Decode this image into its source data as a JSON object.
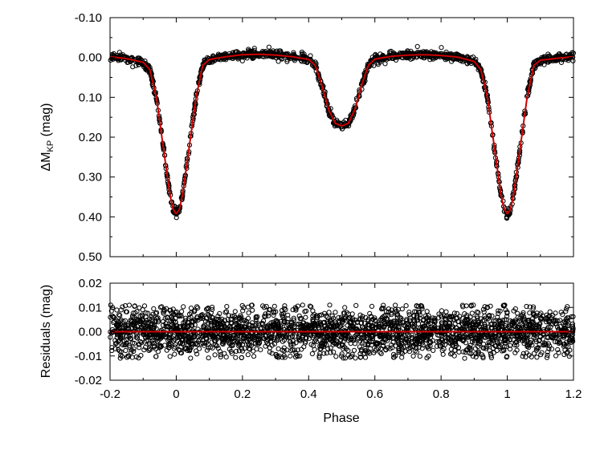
{
  "chart_data": [
    {
      "type": "scatter",
      "panel": "light-curve",
      "ylabel": {
        "main": "ΔM",
        "sub": "KP",
        "unit": " (mag)"
      },
      "xlim": [
        -0.2,
        1.2
      ],
      "ylim": [
        -0.1,
        0.5
      ],
      "y_inverted": true,
      "y_ticks": [
        -0.1,
        0.0,
        0.1,
        0.2,
        0.3,
        0.4,
        0.5
      ],
      "y_tick_labels": [
        "-0.10",
        "0.00",
        "0.10",
        "0.20",
        "0.30",
        "0.40",
        "0.50"
      ],
      "x_tick_count": 8,
      "grid": false,
      "series": [
        {
          "kind": "observed",
          "marker": "open-circle",
          "color": "#000000",
          "x": [
            -0.2,
            -0.15,
            -0.1,
            -0.08,
            -0.06,
            -0.04,
            -0.02,
            -0.01,
            0.0,
            0.01,
            0.02,
            0.04,
            0.06,
            0.08,
            0.1,
            0.15,
            0.2,
            0.25,
            0.3,
            0.35,
            0.4,
            0.42,
            0.44,
            0.46,
            0.48,
            0.5,
            0.52,
            0.54,
            0.56,
            0.58,
            0.6,
            0.65,
            0.7,
            0.75,
            0.8,
            0.85,
            0.9,
            0.92,
            0.94,
            0.96,
            0.98,
            0.99,
            1.0,
            1.01,
            1.02,
            1.04,
            1.06,
            1.08,
            1.1,
            1.15,
            1.2
          ],
          "y": [
            -0.002,
            0.003,
            0.012,
            0.03,
            0.1,
            0.22,
            0.34,
            0.38,
            0.393,
            0.38,
            0.34,
            0.22,
            0.1,
            0.02,
            0.005,
            -0.002,
            -0.007,
            -0.008,
            -0.006,
            -0.002,
            0.005,
            0.02,
            0.07,
            0.13,
            0.165,
            0.172,
            0.165,
            0.13,
            0.07,
            0.02,
            0.004,
            -0.003,
            -0.006,
            -0.007,
            -0.005,
            -0.001,
            0.01,
            0.03,
            0.1,
            0.22,
            0.34,
            0.38,
            0.393,
            0.38,
            0.34,
            0.22,
            0.1,
            0.02,
            0.007,
            0.002,
            -0.002
          ],
          "scatter_mag": 0.005
        },
        {
          "kind": "model",
          "line": "solid",
          "color": "#cc0000",
          "x": [
            -0.2,
            -0.15,
            -0.1,
            -0.08,
            -0.06,
            -0.04,
            -0.02,
            -0.01,
            0.0,
            0.01,
            0.02,
            0.04,
            0.06,
            0.08,
            0.1,
            0.15,
            0.2,
            0.25,
            0.3,
            0.35,
            0.4,
            0.42,
            0.44,
            0.46,
            0.48,
            0.5,
            0.52,
            0.54,
            0.56,
            0.58,
            0.6,
            0.65,
            0.7,
            0.75,
            0.8,
            0.85,
            0.9,
            0.92,
            0.94,
            0.96,
            0.98,
            0.99,
            1.0,
            1.01,
            1.02,
            1.04,
            1.06,
            1.08,
            1.1,
            1.15,
            1.2
          ],
          "y": [
            -0.002,
            0.003,
            0.012,
            0.03,
            0.1,
            0.22,
            0.34,
            0.38,
            0.393,
            0.38,
            0.34,
            0.22,
            0.1,
            0.02,
            0.005,
            -0.002,
            -0.007,
            -0.008,
            -0.006,
            -0.002,
            0.005,
            0.02,
            0.07,
            0.13,
            0.165,
            0.172,
            0.165,
            0.13,
            0.07,
            0.02,
            0.004,
            -0.003,
            -0.006,
            -0.007,
            -0.005,
            -0.001,
            0.01,
            0.03,
            0.1,
            0.22,
            0.34,
            0.38,
            0.393,
            0.38,
            0.34,
            0.22,
            0.1,
            0.02,
            0.007,
            0.002,
            -0.002
          ]
        }
      ]
    },
    {
      "type": "scatter",
      "panel": "residuals",
      "xlabel": "Phase",
      "ylabel": "Residuals (mag)",
      "xlim": [
        -0.2,
        1.2
      ],
      "ylim": [
        -0.02,
        0.02
      ],
      "x_ticks": [
        -0.2,
        0.0,
        0.2,
        0.4,
        0.6,
        0.8,
        1.0,
        1.2
      ],
      "x_tick_labels": [
        "-0.2",
        "0",
        "0.2",
        "0.4",
        "0.6",
        "0.8",
        "1",
        "1.2"
      ],
      "y_ticks": [
        -0.02,
        -0.01,
        0.0,
        0.01,
        0.02
      ],
      "y_tick_labels": [
        "-0.02",
        "-0.01",
        "0.00",
        "0.01",
        "0.02"
      ],
      "grid": false,
      "series": [
        {
          "kind": "observed",
          "marker": "open-circle",
          "color": "#000000",
          "spread_mag": 0.011
        },
        {
          "kind": "zero-line",
          "line": "solid",
          "color": "#cc0000",
          "y": 0.0
        }
      ]
    }
  ]
}
